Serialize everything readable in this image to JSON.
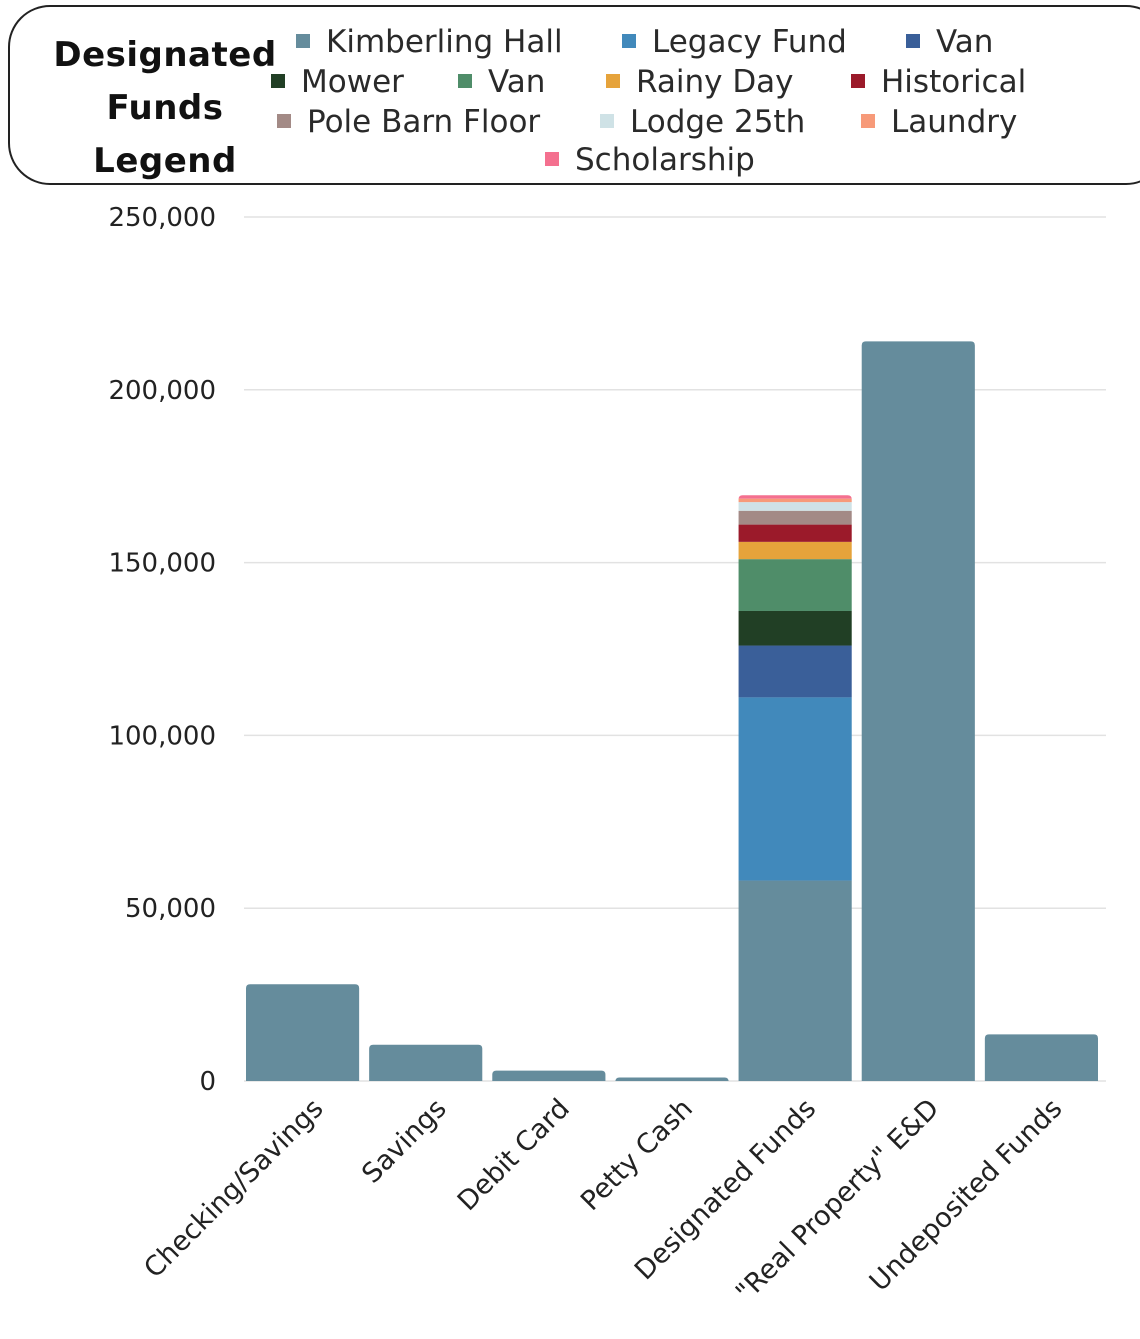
{
  "legend": {
    "title_lines": [
      "Designated",
      "Funds",
      "Legend"
    ],
    "items": [
      {
        "label": "Kimberling Hall",
        "color": "#658c9c"
      },
      {
        "label": "Legacy Fund",
        "color": "#4189bb"
      },
      {
        "label": "Van",
        "color": "#3a5f99"
      },
      {
        "label": "Mower",
        "color": "#213f25"
      },
      {
        "label": "Van",
        "color": "#4f8d69"
      },
      {
        "label": "Rainy Day",
        "color": "#e6a33b"
      },
      {
        "label": "Historical",
        "color": "#9b1a2a"
      },
      {
        "label": "Pole Barn Floor",
        "color": "#a38a86"
      },
      {
        "label": "Lodge 25th",
        "color": "#cfe2e6"
      },
      {
        "label": "Laundry",
        "color": "#f79a79"
      },
      {
        "label": "Scholarship",
        "color": "#f4708f"
      }
    ]
  },
  "chart_data": {
    "type": "bar",
    "stacked": true,
    "categories": [
      "Checking/Savings",
      "Savings",
      "Debit Card",
      "Petty Cash",
      "Designated Funds",
      "\"Real Property\" E&D",
      "Undeposited Funds"
    ],
    "ylim": [
      0,
      250000
    ],
    "yticks": [
      0,
      50000,
      100000,
      150000,
      200000,
      250000
    ],
    "ytick_labels": [
      "0",
      "50,000",
      "100,000",
      "150,000",
      "200,000",
      "250,000"
    ],
    "grid": true,
    "bar_color": "#658c9c",
    "values": [
      28000,
      10500,
      3000,
      1000,
      null,
      214000,
      13500
    ],
    "designated_stack": [
      {
        "name": "Kimberling Hall",
        "value": 58000,
        "color": "#658c9c"
      },
      {
        "name": "Legacy Fund",
        "value": 53000,
        "color": "#4189bb"
      },
      {
        "name": "Van",
        "value": 15000,
        "color": "#3a5f99"
      },
      {
        "name": "Mower",
        "value": 10000,
        "color": "#213f25"
      },
      {
        "name": "Van",
        "value": 15000,
        "color": "#4f8d69"
      },
      {
        "name": "Rainy Day",
        "value": 5000,
        "color": "#e6a33b"
      },
      {
        "name": "Historical",
        "value": 5000,
        "color": "#9b1a2a"
      },
      {
        "name": "Pole Barn Floor",
        "value": 4000,
        "color": "#a38a86"
      },
      {
        "name": "Lodge 25th",
        "value": 2500,
        "color": "#cfe2e6"
      },
      {
        "name": "Laundry",
        "value": 1000,
        "color": "#f79a79"
      },
      {
        "name": "Scholarship",
        "value": 1000,
        "color": "#f4708f"
      }
    ],
    "legend_position": "top"
  }
}
